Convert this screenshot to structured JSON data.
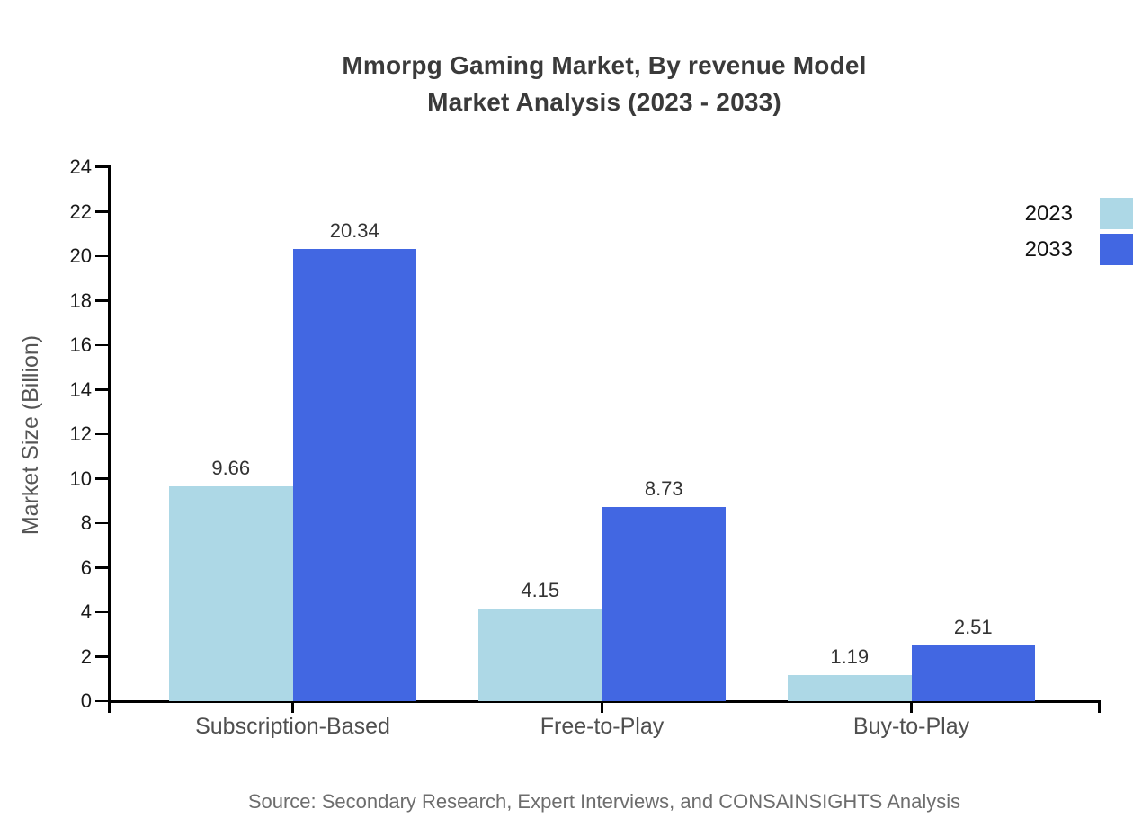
{
  "title": {
    "line1": "Mmorpg Gaming Market, By revenue Model",
    "line2": "Market Analysis (2023 - 2033)"
  },
  "chart_data": {
    "type": "bar",
    "categories": [
      "Subscription-Based",
      "Free-to-Play",
      "Buy-to-Play"
    ],
    "series": [
      {
        "name": "2023",
        "color": "#ADD8E6",
        "values": [
          9.66,
          4.15,
          1.19
        ]
      },
      {
        "name": "2033",
        "color": "#4267E2",
        "values": [
          20.34,
          8.73,
          2.51
        ]
      }
    ],
    "xlabel": "",
    "ylabel": "Market Size (Billion)",
    "ylim": [
      0,
      24
    ],
    "ytick_step": 2,
    "ytick_labels": [
      "0",
      "2",
      "4",
      "6",
      "8",
      "10",
      "12",
      "14",
      "16",
      "18",
      "20",
      "22",
      "24"
    ],
    "grid": false,
    "legend_position": "top-right",
    "value_labels": true,
    "value_label_format": "2-decimals"
  },
  "source": "Source: Secondary Research, Expert Interviews, and CONSAINSIGHTS Analysis",
  "colors": {
    "background": "#ffffff",
    "axis": "#000000",
    "title_text": "#3a3a3a",
    "ytick_text": "#1a1a1a",
    "category_text": "#4f4f4f",
    "value_text": "#333333",
    "ylabel_text": "#555555",
    "source_text": "#6d6d6d",
    "series_2023": "#ADD8E6",
    "series_2033": "#4267E2"
  }
}
